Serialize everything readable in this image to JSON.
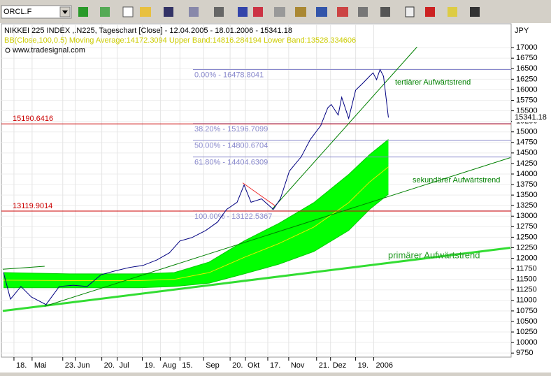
{
  "toolbar": {
    "symbol": "ORCL.F"
  },
  "chart_data": {
    "type": "line",
    "title": "NIKKEI 225 INDEX ,.N225, Tageschart [Close] - 12.04.2005 - 18.01.2006 - 15341.18",
    "subtitle": "BB(Close,100,0.5) Moving Average:14172.3094 Upper Band:14816.284194 Lower Band:13528.334606",
    "source": "www.tradesignal.com",
    "y_axis_label": "JPY",
    "xlim": [
      -2,
      362
    ],
    "xticks": [
      {
        "value": 6,
        "label": "18."
      },
      {
        "value": 19,
        "label": "Mai"
      },
      {
        "value": 41,
        "label": "23."
      },
      {
        "value": 50,
        "label": "Jun"
      },
      {
        "value": 69,
        "label": "20."
      },
      {
        "value": 80,
        "label": "Jul"
      },
      {
        "value": 98,
        "label": "19."
      },
      {
        "value": 111,
        "label": "Aug"
      },
      {
        "value": 125,
        "label": "15."
      },
      {
        "value": 142,
        "label": "Sep"
      },
      {
        "value": 161,
        "label": "20."
      },
      {
        "value": 172,
        "label": "Okt"
      },
      {
        "value": 188,
        "label": "17."
      },
      {
        "value": 203,
        "label": "Nov"
      },
      {
        "value": 223,
        "label": "21."
      },
      {
        "value": 233,
        "label": "Dez"
      },
      {
        "value": 251,
        "label": "19."
      },
      {
        "value": 264,
        "label": "2006"
      }
    ],
    "ylim": [
      9670,
      17500
    ],
    "yticks": [
      9750,
      10000,
      10250,
      10500,
      10750,
      11000,
      11250,
      11500,
      11750,
      12000,
      12250,
      12500,
      12750,
      13000,
      13250,
      13500,
      13750,
      14000,
      14250,
      14500,
      14750,
      15000,
      15250,
      15500,
      15750,
      16000,
      16250,
      16500,
      16750,
      17000
    ],
    "grid": true,
    "last_value_label": 15341.18,
    "series": [
      {
        "color": "#000080",
        "x": [
          -1.5,
          3.5,
          11,
          18.5,
          29,
          38.5,
          48.5,
          58.5,
          68.5,
          78.5,
          88.5,
          98.5,
          108.5,
          117.5,
          125,
          133.5,
          143.5,
          152,
          158.5,
          166,
          171,
          176,
          183.5,
          192,
          197,
          203.5,
          212,
          218.5,
          226,
          231,
          233.5,
          238.5,
          241,
          246,
          251,
          256,
          261,
          263.5,
          266,
          268.5,
          271,
          274.5
        ],
        "values": [
          11660,
          11030,
          11330,
          11080,
          10900,
          11330,
          11360,
          11330,
          11610,
          11700,
          11780,
          11830,
          11960,
          12130,
          12410,
          12490,
          12660,
          12860,
          13160,
          13330,
          13740,
          13330,
          13410,
          13160,
          13410,
          14070,
          14410,
          14820,
          15150,
          15570,
          15650,
          15400,
          15820,
          15320,
          15990,
          16150,
          16320,
          16400,
          16240,
          16480,
          16320,
          15341.18
        ]
      }
    ],
    "band": {
      "fill": "#00ff00",
      "ma_color": "#e8e800",
      "edge_color": "#00cc00",
      "x": [
        -1.5,
        46,
        96,
        121,
        146,
        171,
        196,
        221,
        246,
        261,
        274.5
      ],
      "upper": [
        11660,
        11630,
        11630,
        11660,
        11910,
        12410,
        12830,
        13320,
        13990,
        14460,
        14820
      ],
      "lower": [
        11300,
        11300,
        11300,
        11330,
        11410,
        11630,
        11860,
        12160,
        12660,
        13160,
        13520
      ],
      "ma": [
        11480,
        11470,
        11470,
        11500,
        11660,
        12020,
        12350,
        12740,
        13320,
        13810,
        14170
      ]
    },
    "fib_levels": [
      {
        "label": "0.00% - 16478.8041",
        "value": 16478.8041
      },
      {
        "label": "38.20% - 15196.7099",
        "value": 15196.7099
      },
      {
        "label": "50.00% - 14800.6704",
        "value": 14800.6704
      },
      {
        "label": "61.80% - 14404.6309",
        "value": 14404.6309
      },
      {
        "label": "100.00% - 13122.5367",
        "value": 13122.5367
      }
    ],
    "fib_color": "#8888cc",
    "price_lines": [
      15190.6416,
      13119.9014
    ],
    "price_line_color": "#cc0000",
    "trendlines": [
      {
        "label": "primärer Aufwärtstrend",
        "color": "#33dd33",
        "width": 3,
        "x": [
          -2,
          362
        ],
        "values": [
          10750,
          12250
        ]
      },
      {
        "label": "sekundärer Aufwärtstrend",
        "color": "#008000",
        "width": 1,
        "x": [
          28,
          362
        ],
        "values": [
          10860,
          14390
        ]
      },
      {
        "label": "tertiärer Aufwärtstrend",
        "color": "#008000",
        "width": 1,
        "x": [
          191,
          295
        ],
        "values": [
          13160,
          17015
        ]
      },
      {
        "color": "#008000",
        "width": 1,
        "x": [
          -2,
          28
        ],
        "values": [
          11740,
          11810
        ]
      },
      {
        "color": "#ee3333",
        "width": 1,
        "x": [
          170,
          193.5
        ],
        "values": [
          13790,
          13240
        ]
      }
    ]
  }
}
